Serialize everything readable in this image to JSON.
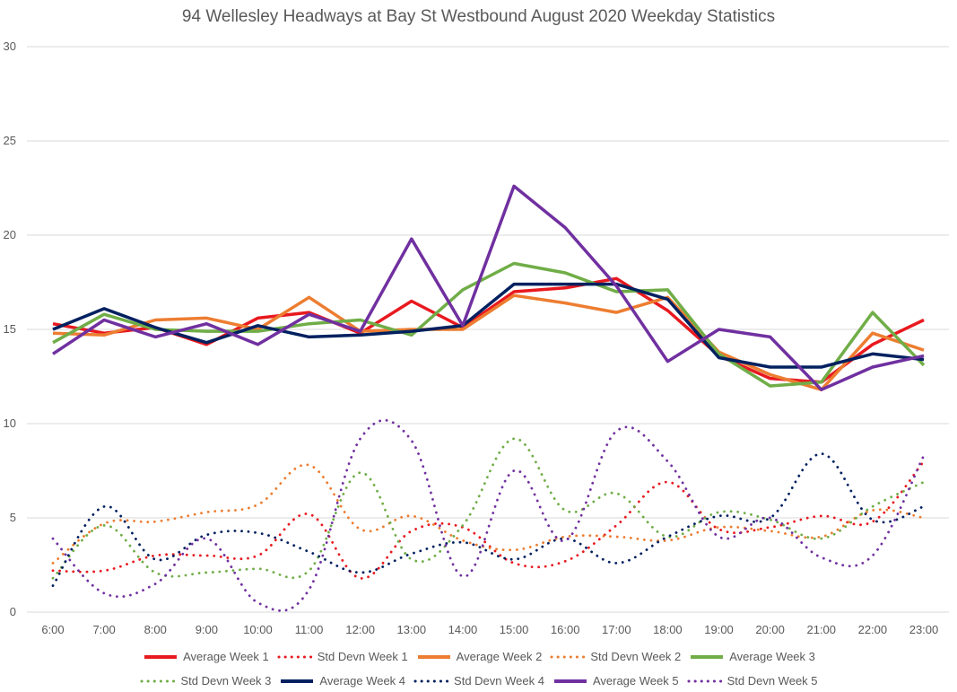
{
  "chart_data": {
    "type": "line",
    "title": "94 Wellesley Headways at Bay St Westbound August 2020 Weekday Statistics",
    "xlabel": "",
    "ylabel": "",
    "ylim": [
      0,
      30
    ],
    "yticks": [
      "0",
      "5",
      "10",
      "15",
      "20",
      "25",
      "30"
    ],
    "grid": true,
    "legend_position": "bottom",
    "categories": [
      "6:00",
      "7:00",
      "8:00",
      "9:00",
      "10:00",
      "11:00",
      "12:00",
      "13:00",
      "14:00",
      "15:00",
      "16:00",
      "17:00",
      "18:00",
      "19:00",
      "20:00",
      "21:00",
      "22:00",
      "23:00"
    ],
    "series": [
      {
        "name": "Average Week 1",
        "color": "#e8191f",
        "style": "solid",
        "values": [
          15.3,
          14.8,
          15.1,
          14.2,
          15.6,
          15.9,
          14.8,
          16.5,
          15.1,
          17.0,
          17.2,
          17.7,
          16.0,
          13.6,
          12.4,
          12.2,
          14.2,
          15.5
        ]
      },
      {
        "name": "Std Devn Week 1",
        "color": "#e8191f",
        "style": "dotted",
        "values": [
          2.2,
          2.2,
          3.0,
          3.0,
          3.0,
          5.2,
          1.8,
          4.3,
          4.5,
          2.6,
          2.7,
          4.6,
          6.9,
          4.4,
          4.5,
          5.1,
          4.8,
          8.0
        ]
      },
      {
        "name": "Average Week 2",
        "color": "#ed7d31",
        "style": "solid",
        "values": [
          14.8,
          14.7,
          15.5,
          15.6,
          15.0,
          16.7,
          14.9,
          15.0,
          15.0,
          16.8,
          16.4,
          15.9,
          16.7,
          13.8,
          12.6,
          11.8,
          14.8,
          13.9
        ]
      },
      {
        "name": "Std Devn Week 2",
        "color": "#ed7d31",
        "style": "dotted",
        "values": [
          2.6,
          4.7,
          4.8,
          5.3,
          5.7,
          7.8,
          4.4,
          5.1,
          3.8,
          3.3,
          4.0,
          4.0,
          3.8,
          4.5,
          4.3,
          4.0,
          5.4,
          5.0
        ]
      },
      {
        "name": "Average Week 3",
        "color": "#70ad47",
        "style": "solid",
        "values": [
          14.3,
          15.8,
          15.0,
          14.9,
          14.9,
          15.3,
          15.5,
          14.7,
          17.1,
          18.5,
          18.0,
          17.0,
          17.1,
          13.7,
          12.0,
          12.2,
          15.9,
          13.1
        ]
      },
      {
        "name": "Std Devn Week 3",
        "color": "#70ad47",
        "style": "dotted",
        "values": [
          1.8,
          4.6,
          2.1,
          2.1,
          2.3,
          2.2,
          7.4,
          2.8,
          4.6,
          9.2,
          5.4,
          6.3,
          4.0,
          5.3,
          4.9,
          3.9,
          5.6,
          6.9
        ]
      },
      {
        "name": "Average Week 4",
        "color": "#002060",
        "style": "solid",
        "values": [
          15.0,
          16.1,
          15.1,
          14.3,
          15.2,
          14.6,
          14.7,
          14.9,
          15.2,
          17.4,
          17.4,
          17.4,
          16.6,
          13.5,
          13.0,
          13.0,
          13.7,
          13.4
        ]
      },
      {
        "name": "Std Devn Week 4",
        "color": "#002060",
        "style": "dotted",
        "values": [
          1.4,
          5.6,
          2.8,
          4.1,
          4.2,
          3.2,
          2.1,
          3.1,
          3.7,
          2.8,
          3.9,
          2.6,
          4.0,
          5.1,
          5.0,
          8.4,
          4.9,
          5.6
        ]
      },
      {
        "name": "Average Week 5",
        "color": "#7030a0",
        "style": "solid",
        "values": [
          13.7,
          15.5,
          14.6,
          15.3,
          14.2,
          15.8,
          14.9,
          19.8,
          15.2,
          22.6,
          20.4,
          17.3,
          13.3,
          15.0,
          14.6,
          11.8,
          13.0,
          13.6
        ]
      },
      {
        "name": "Std Devn Week 5",
        "color": "#7030a0",
        "style": "dotted",
        "values": [
          3.9,
          1.0,
          1.5,
          3.9,
          0.5,
          1.2,
          9.2,
          9.1,
          1.9,
          7.5,
          3.8,
          9.6,
          8.0,
          4.0,
          5.0,
          2.9,
          3.0,
          8.3
        ]
      }
    ]
  }
}
